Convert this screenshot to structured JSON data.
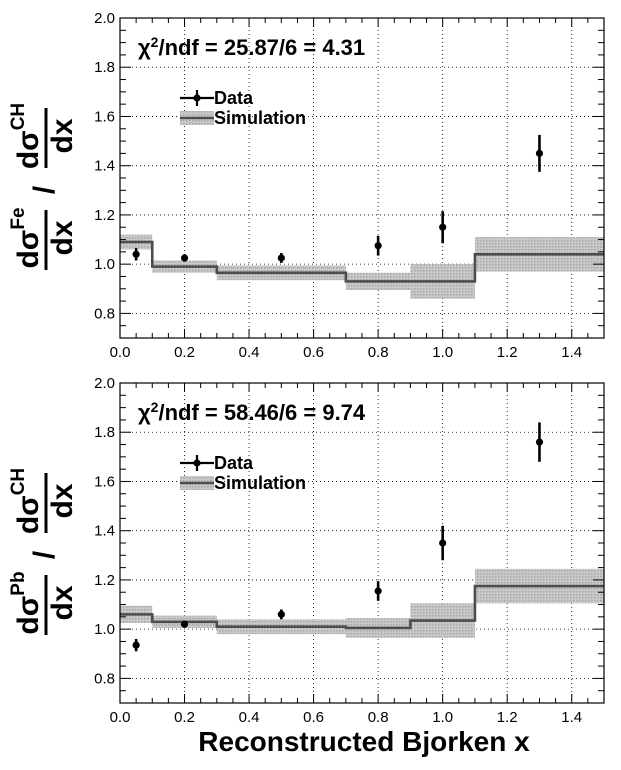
{
  "figure": {
    "xlabel": "Reconstructed Bjorken x"
  },
  "chart_data": [
    {
      "type": "line",
      "title": "",
      "stat_text": "χ²/ndf = 25.87/6 = 4.31",
      "stat": {
        "chi2": "25.87",
        "ndf": "6",
        "ratio": "4.31"
      },
      "ylabel": {
        "numerator": "dσ^Fe/dx",
        "denominator": "dσ^CH/dx",
        "target": "Fe",
        "reference": "CH"
      },
      "xlabel": "Reconstructed Bjorken x",
      "xlim": [
        0.0,
        1.5
      ],
      "ylim": [
        0.7,
        2.0
      ],
      "xticks": [
        "0.0",
        "0.2",
        "0.4",
        "0.6",
        "0.8",
        "1.0",
        "1.2",
        "1.4"
      ],
      "yticks": [
        "0.8",
        "1.0",
        "1.2",
        "1.4",
        "1.6",
        "1.8",
        "2.0"
      ],
      "grid": true,
      "legend": {
        "position": "top-left",
        "entries": [
          "Data",
          "Simulation"
        ]
      },
      "series": [
        {
          "name": "Data",
          "kind": "points_with_errors",
          "x": [
            0.05,
            0.2,
            0.5,
            0.8,
            1.0,
            1.3
          ],
          "y": [
            1.04,
            1.025,
            1.025,
            1.075,
            1.15,
            1.45
          ],
          "yerr": [
            0.025,
            0.015,
            0.02,
            0.04,
            0.065,
            0.075
          ]
        },
        {
          "name": "Simulation",
          "kind": "step_with_band",
          "bin_edges": [
            0.0,
            0.1,
            0.3,
            0.7,
            0.9,
            1.1,
            1.5
          ],
          "values": [
            1.09,
            0.99,
            0.965,
            0.93,
            0.93,
            1.04
          ],
          "band_halfwidth": [
            0.03,
            0.025,
            0.03,
            0.035,
            0.07,
            0.07
          ]
        }
      ]
    },
    {
      "type": "line",
      "title": "",
      "stat_text": "χ²/ndf = 58.46/6 = 9.74",
      "stat": {
        "chi2": "58.46",
        "ndf": "6",
        "ratio": "9.74"
      },
      "ylabel": {
        "numerator": "dσ^Pb/dx",
        "denominator": "dσ^CH/dx",
        "target": "Pb",
        "reference": "CH"
      },
      "xlabel": "Reconstructed Bjorken x",
      "xlim": [
        0.0,
        1.5
      ],
      "ylim": [
        0.7,
        2.0
      ],
      "xticks": [
        "0.0",
        "0.2",
        "0.4",
        "0.6",
        "0.8",
        "1.0",
        "1.2",
        "1.4"
      ],
      "yticks": [
        "0.8",
        "1.0",
        "1.2",
        "1.4",
        "1.6",
        "1.8",
        "2.0"
      ],
      "grid": true,
      "legend": {
        "position": "top-left",
        "entries": [
          "Data",
          "Simulation"
        ]
      },
      "series": [
        {
          "name": "Data",
          "kind": "points_with_errors",
          "x": [
            0.05,
            0.2,
            0.5,
            0.8,
            1.0,
            1.3
          ],
          "y": [
            0.935,
            1.02,
            1.06,
            1.155,
            1.35,
            1.76
          ],
          "yerr": [
            0.025,
            0.015,
            0.02,
            0.04,
            0.07,
            0.08
          ]
        },
        {
          "name": "Simulation",
          "kind": "step_with_band",
          "bin_edges": [
            0.0,
            0.1,
            0.3,
            0.7,
            0.9,
            1.1,
            1.5
          ],
          "values": [
            1.06,
            1.03,
            1.01,
            1.005,
            1.035,
            1.175
          ],
          "band_halfwidth": [
            0.035,
            0.025,
            0.03,
            0.04,
            0.07,
            0.07
          ]
        }
      ]
    }
  ],
  "colors": {
    "axis": "#000000",
    "grid": "#000000",
    "data": "#000000",
    "sim_line": "#4d4d4d",
    "sim_band": "#bdbdbd"
  },
  "icons": {
    "legend_data": "marker-with-errorbar-icon",
    "legend_sim": "line-with-band-icon"
  }
}
